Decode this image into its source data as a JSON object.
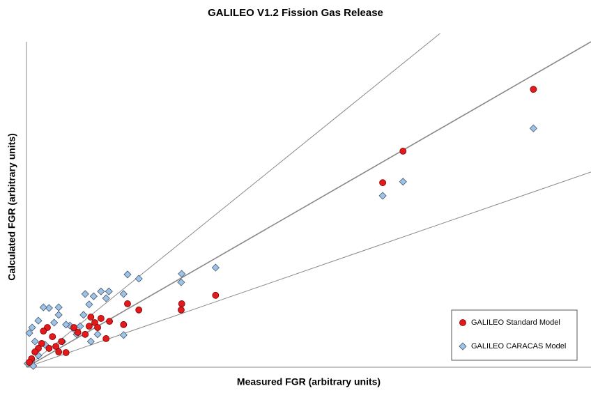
{
  "chart_data": {
    "type": "scatter",
    "title": "GALILEO V1.2 Fission Gas Release",
    "x_label": "Measured FGR (arbitrary units)",
    "y_label": "Calculated FGR (arbitrary units)",
    "xlim": [
      0,
      100
    ],
    "ylim": [
      0,
      100
    ],
    "reference_lines": [
      1.4,
      1,
      0.6
    ],
    "legend": "lower right",
    "series": [
      {
        "name": "GALILEO Standard Model",
        "color": "#e31a1c",
        "marker": "circle",
        "x": [
          89.8,
          66.7,
          63.1,
          33.5,
          27.5,
          27.4,
          19.9,
          17.9,
          17.2,
          14.7,
          14.1,
          13.2,
          12.1,
          11.1,
          10.4,
          9.1,
          8.4,
          7.0,
          6.2,
          5.2,
          4.6,
          3.7,
          3.0,
          2.7,
          2.1,
          1.5,
          0.9,
          0.5,
          4.0,
          5.7,
          11.4,
          12.6
        ],
        "values": [
          85.4,
          66.4,
          56.7,
          22.1,
          19.5,
          17.6,
          17.6,
          19.5,
          13.1,
          14.1,
          8.8,
          15.0,
          13.7,
          12.6,
          10.1,
          10.7,
          12.2,
          4.5,
          7.9,
          6.4,
          9.4,
          12.2,
          11.1,
          7.3,
          5.8,
          4.7,
          2.6,
          1.5,
          5.8,
          4.7,
          15.4,
          12.2
        ]
      },
      {
        "name": "GALILEO CARACAS Model",
        "color": "#9dc3e6",
        "marker": "diamond",
        "x": [
          89.8,
          66.7,
          63.1,
          33.5,
          27.5,
          27.4,
          19.9,
          17.9,
          17.2,
          17.2,
          14.6,
          14.1,
          13.2,
          11.9,
          11.1,
          10.4,
          10.1,
          9.5,
          8.5,
          7.7,
          7.0,
          5.7,
          5.7,
          4.9,
          4.0,
          3.0,
          2.1,
          1.0,
          0.5,
          1.5,
          3.3,
          6.4,
          8.9,
          12.6,
          11.4,
          0.9,
          1.2,
          0.2,
          2.1
        ],
        "values": [
          73.4,
          57.0,
          52.7,
          30.6,
          28.7,
          26.1,
          27.2,
          28.5,
          22.5,
          9.9,
          23.3,
          21.2,
          23.3,
          21.8,
          19.3,
          22.5,
          16.1,
          12.6,
          11.6,
          12.8,
          13.1,
          18.4,
          16.1,
          13.7,
          18.2,
          18.4,
          14.3,
          12.2,
          10.5,
          7.9,
          6.9,
          7.9,
          10.1,
          10.1,
          7.9,
          1.5,
          0.4,
          1.1,
          3.6
        ]
      }
    ]
  }
}
